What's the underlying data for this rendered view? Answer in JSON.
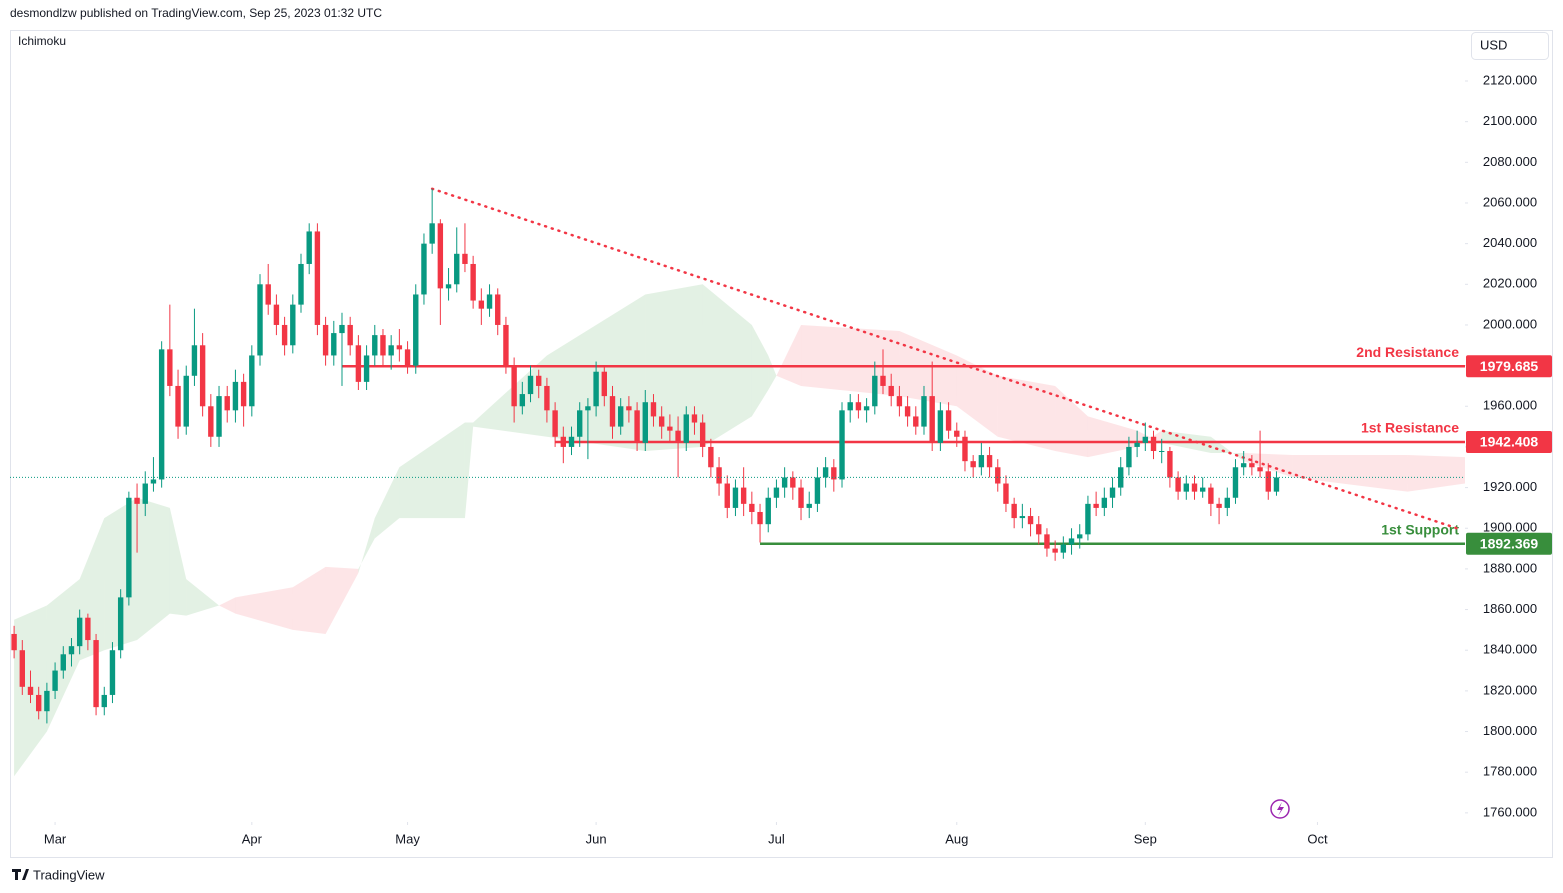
{
  "header": "desmondlzw published on TradingView.com, Sep 25, 2023 01:32 UTC",
  "footer": "TradingView",
  "chart_data": {
    "type": "candlestick",
    "indicator": "Ichimoku",
    "currency": "USD",
    "up_color": "#089981",
    "down_color": "#f23645",
    "grid": false,
    "xlim": [
      -0.5,
      177
    ],
    "ylim": [
      1755.5,
      2144.6
    ],
    "xticks": [
      {
        "value": 5,
        "label": "Mar"
      },
      {
        "value": 29,
        "label": "Apr"
      },
      {
        "value": 48,
        "label": "May"
      },
      {
        "value": 71,
        "label": "Jun"
      },
      {
        "value": 93,
        "label": "Jul"
      },
      {
        "value": 115,
        "label": "Aug"
      },
      {
        "value": 138,
        "label": "Sep"
      },
      {
        "value": 159,
        "label": "Oct"
      }
    ],
    "yticks": [
      {
        "value": 1760,
        "label": "1760.000"
      },
      {
        "value": 1780,
        "label": "1780.000"
      },
      {
        "value": 1800,
        "label": "1800.000"
      },
      {
        "value": 1820,
        "label": "1820.000"
      },
      {
        "value": 1840,
        "label": "1840.000"
      },
      {
        "value": 1860,
        "label": "1860.000"
      },
      {
        "value": 1880,
        "label": "1880.000"
      },
      {
        "value": 1900,
        "label": "1900.000"
      },
      {
        "value": 1920,
        "label": "1920.000"
      },
      {
        "value": 1940,
        "label": "1940.000"
      },
      {
        "value": 1960,
        "label": "1960.000"
      },
      {
        "value": 1980,
        "label": "1980.000"
      },
      {
        "value": 2000,
        "label": "2000.000"
      },
      {
        "value": 2020,
        "label": "2020.000"
      },
      {
        "value": 2040,
        "label": "2040.000"
      },
      {
        "value": 2060,
        "label": "2060.000"
      },
      {
        "value": 2080,
        "label": "2080.000"
      },
      {
        "value": 2100,
        "label": "2100.000"
      },
      {
        "value": 2120,
        "label": "2120.000"
      }
    ],
    "candles": [
      [
        1848,
        1852,
        1836,
        1840
      ],
      [
        1840,
        1845,
        1818,
        1822
      ],
      [
        1822,
        1830,
        1814,
        1818
      ],
      [
        1818,
        1822,
        1806,
        1810
      ],
      [
        1810,
        1824,
        1804,
        1820
      ],
      [
        1820,
        1834,
        1816,
        1830
      ],
      [
        1830,
        1842,
        1826,
        1838
      ],
      [
        1838,
        1846,
        1832,
        1842
      ],
      [
        1842,
        1860,
        1838,
        1856
      ],
      [
        1856,
        1858,
        1840,
        1845
      ],
      [
        1845,
        1848,
        1808,
        1812
      ],
      [
        1812,
        1822,
        1808,
        1818
      ],
      [
        1818,
        1844,
        1814,
        1840
      ],
      [
        1840,
        1870,
        1836,
        1866
      ],
      [
        1866,
        1918,
        1862,
        1915
      ],
      [
        1915,
        1922,
        1888,
        1912
      ],
      [
        1912,
        1928,
        1906,
        1922
      ],
      [
        1922,
        1935,
        1918,
        1924
      ],
      [
        1924,
        1992,
        1920,
        1988
      ],
      [
        1988,
        2010,
        1965,
        1970
      ],
      [
        1970,
        1978,
        1944,
        1950
      ],
      [
        1950,
        1980,
        1946,
        1975
      ],
      [
        1975,
        2008,
        1970,
        1990
      ],
      [
        1990,
        1996,
        1955,
        1960
      ],
      [
        1960,
        1966,
        1940,
        1945
      ],
      [
        1945,
        1970,
        1940,
        1965
      ],
      [
        1965,
        1970,
        1952,
        1958
      ],
      [
        1958,
        1978,
        1952,
        1972
      ],
      [
        1972,
        1976,
        1950,
        1960
      ],
      [
        1960,
        1990,
        1955,
        1985
      ],
      [
        1985,
        2025,
        1980,
        2020
      ],
      [
        2020,
        2030,
        2005,
        2010
      ],
      [
        2010,
        2015,
        1995,
        2000
      ],
      [
        2000,
        2004,
        1985,
        1990
      ],
      [
        1990,
        2015,
        1986,
        2010
      ],
      [
        2010,
        2035,
        2006,
        2030
      ],
      [
        2030,
        2050,
        2025,
        2046
      ],
      [
        2046,
        2050,
        1995,
        2000
      ],
      [
        2000,
        2004,
        1980,
        1985
      ],
      [
        1985,
        2002,
        1980,
        1996
      ],
      [
        1996,
        2006,
        1970,
        2000
      ],
      [
        2000,
        2004,
        1985,
        1990
      ],
      [
        1990,
        1995,
        1968,
        1972
      ],
      [
        1972,
        1990,
        1968,
        1985
      ],
      [
        1985,
        2000,
        1980,
        1995
      ],
      [
        1995,
        1998,
        1980,
        1985
      ],
      [
        1985,
        1995,
        1978,
        1990
      ],
      [
        1990,
        1998,
        1982,
        1988
      ],
      [
        1988,
        1992,
        1976,
        1980
      ],
      [
        1980,
        2020,
        1976,
        2015
      ],
      [
        2015,
        2045,
        2010,
        2040
      ],
      [
        2040,
        2067,
        2035,
        2050
      ],
      [
        2050,
        2052,
        2000,
        2018
      ],
      [
        2018,
        2028,
        2012,
        2020
      ],
      [
        2020,
        2048,
        2016,
        2035
      ],
      [
        2035,
        2050,
        2026,
        2030
      ],
      [
        2030,
        2034,
        2008,
        2012
      ],
      [
        2012,
        2018,
        2000,
        2008
      ],
      [
        2008,
        2020,
        2004,
        2015
      ],
      [
        2015,
        2018,
        1995,
        2000
      ],
      [
        2000,
        2004,
        1976,
        1980
      ],
      [
        1980,
        1984,
        1952,
        1960
      ],
      [
        1960,
        1972,
        1956,
        1966
      ],
      [
        1966,
        1980,
        1962,
        1975
      ],
      [
        1975,
        1978,
        1964,
        1970
      ],
      [
        1970,
        1974,
        1952,
        1958
      ],
      [
        1958,
        1962,
        1940,
        1945
      ],
      [
        1945,
        1950,
        1932,
        1940
      ],
      [
        1940,
        1950,
        1936,
        1945
      ],
      [
        1945,
        1962,
        1940,
        1958
      ],
      [
        1958,
        1964,
        1934,
        1960
      ],
      [
        1960,
        1982,
        1955,
        1977
      ],
      [
        1977,
        1980,
        1960,
        1965
      ],
      [
        1965,
        1970,
        1944,
        1950
      ],
      [
        1950,
        1964,
        1946,
        1960
      ],
      [
        1960,
        1965,
        1952,
        1958
      ],
      [
        1958,
        1962,
        1938,
        1942
      ],
      [
        1942,
        1968,
        1938,
        1962
      ],
      [
        1962,
        1966,
        1950,
        1955
      ],
      [
        1955,
        1960,
        1944,
        1950
      ],
      [
        1950,
        1956,
        1942,
        1948
      ],
      [
        1948,
        1955,
        1925,
        1942
      ],
      [
        1942,
        1960,
        1938,
        1956
      ],
      [
        1956,
        1960,
        1946,
        1952
      ],
      [
        1952,
        1956,
        1935,
        1940
      ],
      [
        1940,
        1944,
        1925,
        1930
      ],
      [
        1930,
        1935,
        1916,
        1922
      ],
      [
        1922,
        1926,
        1905,
        1910
      ],
      [
        1910,
        1924,
        1906,
        1920
      ],
      [
        1920,
        1930,
        1906,
        1912
      ],
      [
        1912,
        1918,
        1902,
        1908
      ],
      [
        1908,
        1912,
        1893,
        1902
      ],
      [
        1902,
        1920,
        1898,
        1915
      ],
      [
        1915,
        1924,
        1910,
        1920
      ],
      [
        1920,
        1930,
        1915,
        1925
      ],
      [
        1925,
        1928,
        1914,
        1920
      ],
      [
        1920,
        1924,
        1904,
        1910
      ],
      [
        1910,
        1918,
        1905,
        1912
      ],
      [
        1912,
        1930,
        1908,
        1925
      ],
      [
        1925,
        1935,
        1920,
        1930
      ],
      [
        1930,
        1934,
        1918,
        1924
      ],
      [
        1924,
        1962,
        1920,
        1958
      ],
      [
        1958,
        1966,
        1952,
        1962
      ],
      [
        1962,
        1966,
        1954,
        1958
      ],
      [
        1958,
        1964,
        1952,
        1960
      ],
      [
        1960,
        1982,
        1956,
        1975
      ],
      [
        1975,
        1988,
        1966,
        1970
      ],
      [
        1970,
        1976,
        1960,
        1965
      ],
      [
        1965,
        1970,
        1955,
        1960
      ],
      [
        1960,
        1965,
        1950,
        1955
      ],
      [
        1955,
        1960,
        1946,
        1950
      ],
      [
        1950,
        1970,
        1946,
        1965
      ],
      [
        1965,
        1982,
        1938,
        1942
      ],
      [
        1942,
        1962,
        1938,
        1958
      ],
      [
        1958,
        1962,
        1944,
        1948
      ],
      [
        1948,
        1952,
        1940,
        1945
      ],
      [
        1945,
        1948,
        1928,
        1933
      ],
      [
        1933,
        1936,
        1925,
        1930
      ],
      [
        1930,
        1942,
        1926,
        1936
      ],
      [
        1936,
        1940,
        1925,
        1930
      ],
      [
        1930,
        1934,
        1918,
        1922
      ],
      [
        1922,
        1926,
        1908,
        1912
      ],
      [
        1912,
        1915,
        1900,
        1905
      ],
      [
        1905,
        1912,
        1900,
        1906
      ],
      [
        1906,
        1910,
        1896,
        1902
      ],
      [
        1902,
        1906,
        1892,
        1897
      ],
      [
        1897,
        1900,
        1886,
        1890
      ],
      [
        1890,
        1894,
        1884,
        1888
      ],
      [
        1888,
        1896,
        1885,
        1892
      ],
      [
        1892,
        1900,
        1887,
        1895
      ],
      [
        1895,
        1902,
        1890,
        1897
      ],
      [
        1897,
        1916,
        1894,
        1912
      ],
      [
        1912,
        1918,
        1906,
        1910
      ],
      [
        1910,
        1920,
        1906,
        1915
      ],
      [
        1915,
        1925,
        1910,
        1920
      ],
      [
        1920,
        1935,
        1916,
        1930
      ],
      [
        1930,
        1945,
        1926,
        1940
      ],
      [
        1940,
        1948,
        1935,
        1942
      ],
      [
        1942,
        1952,
        1938,
        1945
      ],
      [
        1945,
        1948,
        1934,
        1938
      ],
      [
        1938,
        1944,
        1932,
        1938
      ],
      [
        1938,
        1940,
        1920,
        1925
      ],
      [
        1925,
        1928,
        1914,
        1918
      ],
      [
        1918,
        1926,
        1914,
        1922
      ],
      [
        1922,
        1926,
        1914,
        1918
      ],
      [
        1918,
        1925,
        1915,
        1920
      ],
      [
        1920,
        1922,
        1906,
        1912
      ],
      [
        1912,
        1915,
        1902,
        1910
      ],
      [
        1910,
        1920,
        1906,
        1915
      ],
      [
        1915,
        1934,
        1912,
        1930
      ],
      [
        1930,
        1938,
        1926,
        1932
      ],
      [
        1932,
        1936,
        1926,
        1930
      ],
      [
        1930,
        1948,
        1925,
        1928
      ],
      [
        1928,
        1932,
        1914,
        1918
      ],
      [
        1918,
        1928,
        1916,
        1925
      ]
    ],
    "cloud": {
      "up_color": "rgba(67,160,71,0.15)",
      "down_color": "rgba(242,54,69,0.13)",
      "x": [
        0,
        4,
        8,
        11,
        15,
        19,
        21,
        25,
        27,
        34,
        38,
        42,
        44,
        47,
        55,
        56,
        65,
        77,
        84,
        90,
        92,
        93,
        96,
        108,
        115,
        120,
        127,
        131,
        137,
        140,
        146,
        150,
        156,
        170,
        177
      ],
      "span_a": [
        1855,
        1862,
        1875,
        1905,
        1915,
        1910,
        1875,
        1862,
        1858,
        1850,
        1848,
        1878,
        1905,
        1930,
        1952,
        1952,
        1985,
        2015,
        2020,
        2000,
        1985,
        1975,
        1970,
        1965,
        1960,
        1945,
        1938,
        1935,
        1940,
        1948,
        1945,
        1933,
        1925,
        1918,
        1922
      ],
      "span_b": [
        1778,
        1800,
        1835,
        1840,
        1845,
        1858,
        1857,
        1862,
        1866,
        1871,
        1881,
        1880,
        1895,
        1905,
        1905,
        1950,
        1945,
        1938,
        1940,
        1955,
        1968,
        1975,
        2000,
        1997,
        1985,
        1975,
        1970,
        1955,
        1948,
        1942,
        1937,
        1937,
        1936,
        1936,
        1935
      ]
    },
    "levels": [
      {
        "name": "2nd Resistance",
        "value": 1979.685,
        "color": "#f23645",
        "start": 40
      },
      {
        "name": "1st Resistance",
        "value": 1942.408,
        "color": "#f23645",
        "start": 66
      },
      {
        "name": "1st Support",
        "value": 1892.369,
        "color": "#388e3c",
        "start": 91
      }
    ],
    "trendline": {
      "start": [
        51,
        2067
      ],
      "end": [
        176,
        1900
      ],
      "color": "#f23645"
    }
  }
}
